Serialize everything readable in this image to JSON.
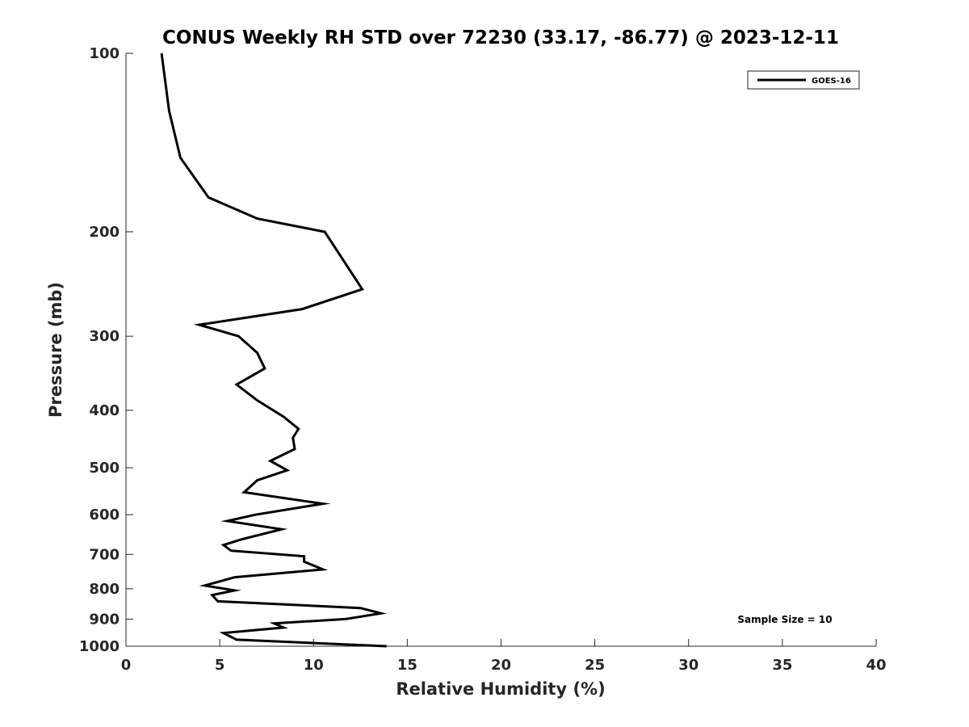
{
  "chart_data": {
    "type": "line",
    "title": "CONUS Weekly RH STD over 72230 (33.17, -86.77) @ 2023-12-11",
    "xlabel": "Relative Humidity (%)",
    "ylabel": "Pressure (mb)",
    "xlim": [
      0,
      40
    ],
    "ylim": [
      100,
      1000
    ],
    "yscale": "log",
    "y_reversed": true,
    "xticks": [
      0,
      5,
      10,
      15,
      20,
      25,
      30,
      35,
      40
    ],
    "yticks": [
      100,
      200,
      300,
      400,
      500,
      600,
      700,
      800,
      900,
      1000
    ],
    "grid": false,
    "legend_position": "top-right",
    "annotation": "Sample Size = 10",
    "series": [
      {
        "name": "GOES-16",
        "color": "#000000",
        "points": [
          [
            1.9,
            100
          ],
          [
            2.3,
            125
          ],
          [
            2.9,
            150
          ],
          [
            4.4,
            175
          ],
          [
            7.0,
            190
          ],
          [
            10.6,
            200
          ],
          [
            12.6,
            250
          ],
          [
            9.4,
            270
          ],
          [
            3.9,
            287
          ],
          [
            6.0,
            300
          ],
          [
            7.0,
            320
          ],
          [
            7.4,
            340
          ],
          [
            5.9,
            362
          ],
          [
            7.0,
            385
          ],
          [
            8.4,
            410
          ],
          [
            9.2,
            430
          ],
          [
            8.9,
            445
          ],
          [
            9.0,
            465
          ],
          [
            7.7,
            487
          ],
          [
            8.6,
            505
          ],
          [
            7.0,
            525
          ],
          [
            6.3,
            550
          ],
          [
            10.5,
            575
          ],
          [
            6.9,
            600
          ],
          [
            5.4,
            615
          ],
          [
            8.3,
            635
          ],
          [
            6.2,
            660
          ],
          [
            5.2,
            675
          ],
          [
            5.6,
            690
          ],
          [
            9.5,
            705
          ],
          [
            9.5,
            720
          ],
          [
            10.5,
            742
          ],
          [
            5.8,
            765
          ],
          [
            4.2,
            790
          ],
          [
            5.8,
            805
          ],
          [
            4.6,
            820
          ],
          [
            4.9,
            840
          ],
          [
            12.5,
            862
          ],
          [
            13.6,
            880
          ],
          [
            11.7,
            900
          ],
          [
            7.9,
            915
          ],
          [
            8.4,
            930
          ],
          [
            5.2,
            950
          ],
          [
            5.9,
            975
          ],
          [
            13.9,
            1000
          ]
        ]
      }
    ]
  }
}
